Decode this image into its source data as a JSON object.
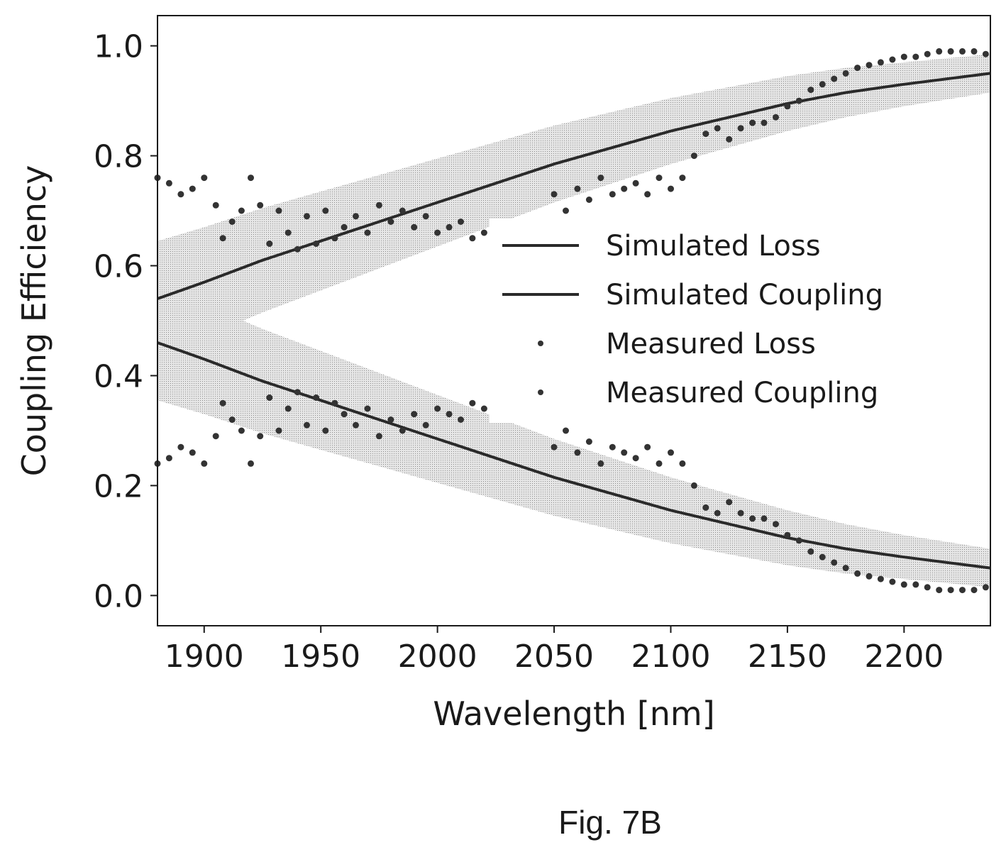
{
  "caption": "Fig. 7B",
  "chart_data": {
    "type": "line",
    "xlabel": "Wavelength [nm]",
    "ylabel": "Coupling Efficiency",
    "xlim": [
      1880,
      2237
    ],
    "ylim": [
      -0.055,
      1.055
    ],
    "xticks": [
      1900,
      1950,
      2000,
      2050,
      2100,
      2150,
      2200
    ],
    "xtick_labels": [
      "1900",
      "1950",
      "2000",
      "2050",
      "2100",
      "2150",
      "2200"
    ],
    "yticks": [
      0.0,
      0.2,
      0.4,
      0.6,
      0.8,
      1.0
    ],
    "ytick_labels": [
      "0.0",
      "0.2",
      "0.4",
      "0.6",
      "0.8",
      "1.0"
    ],
    "grid": false,
    "legend_position": "right",
    "colors": {
      "line": "#2a2a2a",
      "band": "#bdbdbd",
      "points": "#333333"
    },
    "series": [
      {
        "name": "Simulated Loss",
        "kind": "line",
        "x": [
          1880,
          1900,
          1925,
          1950,
          1975,
          2000,
          2025,
          2050,
          2075,
          2100,
          2125,
          2150,
          2175,
          2200,
          2237
        ],
        "y": [
          0.46,
          0.43,
          0.39,
          0.355,
          0.32,
          0.285,
          0.25,
          0.215,
          0.185,
          0.155,
          0.13,
          0.105,
          0.085,
          0.07,
          0.05
        ],
        "band": [
          0.105,
          0.1,
          0.095,
          0.09,
          0.085,
          0.08,
          0.075,
          0.07,
          0.065,
          0.06,
          0.055,
          0.05,
          0.045,
          0.04,
          0.035
        ]
      },
      {
        "name": "Simulated Coupling",
        "kind": "line",
        "x": [
          1880,
          1900,
          1925,
          1950,
          1975,
          2000,
          2025,
          2050,
          2075,
          2100,
          2125,
          2150,
          2175,
          2200,
          2237
        ],
        "y": [
          0.54,
          0.57,
          0.61,
          0.645,
          0.68,
          0.715,
          0.75,
          0.785,
          0.815,
          0.845,
          0.87,
          0.895,
          0.915,
          0.93,
          0.95
        ],
        "band": [
          0.105,
          0.1,
          0.095,
          0.09,
          0.085,
          0.08,
          0.075,
          0.07,
          0.065,
          0.06,
          0.055,
          0.05,
          0.045,
          0.04,
          0.035
        ]
      },
      {
        "name": "Measured Loss",
        "kind": "scatter",
        "x": [
          1880,
          1885,
          1890,
          1895,
          1900,
          1905,
          1908,
          1912,
          1916,
          1920,
          1924,
          1928,
          1932,
          1936,
          1940,
          1944,
          1948,
          1952,
          1956,
          1960,
          1965,
          1970,
          1975,
          1980,
          1985,
          1990,
          1995,
          2000,
          2005,
          2010,
          2015,
          2020,
          2045,
          2050,
          2055,
          2060,
          2065,
          2070,
          2075,
          2080,
          2085,
          2090,
          2095,
          2100,
          2105,
          2110,
          2115,
          2120,
          2125,
          2130,
          2135,
          2140,
          2145,
          2150,
          2155,
          2160,
          2165,
          2170,
          2175,
          2180,
          2185,
          2190,
          2195,
          2200,
          2205,
          2210,
          2215,
          2220,
          2225,
          2230,
          2235
        ],
        "y": [
          0.24,
          0.25,
          0.27,
          0.26,
          0.24,
          0.29,
          0.35,
          0.32,
          0.3,
          0.24,
          0.29,
          0.36,
          0.3,
          0.34,
          0.37,
          0.31,
          0.36,
          0.3,
          0.35,
          0.33,
          0.31,
          0.34,
          0.29,
          0.32,
          0.3,
          0.33,
          0.31,
          0.34,
          0.33,
          0.32,
          0.35,
          0.34,
          0.33,
          0.27,
          0.3,
          0.26,
          0.28,
          0.24,
          0.27,
          0.26,
          0.25,
          0.27,
          0.24,
          0.26,
          0.24,
          0.2,
          0.16,
          0.15,
          0.17,
          0.15,
          0.14,
          0.14,
          0.13,
          0.11,
          0.1,
          0.08,
          0.07,
          0.06,
          0.05,
          0.04,
          0.035,
          0.03,
          0.025,
          0.02,
          0.02,
          0.015,
          0.01,
          0.01,
          0.01,
          0.01,
          0.015
        ]
      },
      {
        "name": "Measured Coupling",
        "kind": "scatter",
        "x": [
          1880,
          1885,
          1890,
          1895,
          1900,
          1905,
          1908,
          1912,
          1916,
          1920,
          1924,
          1928,
          1932,
          1936,
          1940,
          1944,
          1948,
          1952,
          1956,
          1960,
          1965,
          1970,
          1975,
          1980,
          1985,
          1990,
          1995,
          2000,
          2005,
          2010,
          2015,
          2020,
          2045,
          2050,
          2055,
          2060,
          2065,
          2070,
          2075,
          2080,
          2085,
          2090,
          2095,
          2100,
          2105,
          2110,
          2115,
          2120,
          2125,
          2130,
          2135,
          2140,
          2145,
          2150,
          2155,
          2160,
          2165,
          2170,
          2175,
          2180,
          2185,
          2190,
          2195,
          2200,
          2205,
          2210,
          2215,
          2220,
          2225,
          2230,
          2235
        ],
        "y": [
          0.76,
          0.75,
          0.73,
          0.74,
          0.76,
          0.71,
          0.65,
          0.68,
          0.7,
          0.76,
          0.71,
          0.64,
          0.7,
          0.66,
          0.63,
          0.69,
          0.64,
          0.7,
          0.65,
          0.67,
          0.69,
          0.66,
          0.71,
          0.68,
          0.7,
          0.67,
          0.69,
          0.66,
          0.67,
          0.68,
          0.65,
          0.66,
          0.67,
          0.73,
          0.7,
          0.74,
          0.72,
          0.76,
          0.73,
          0.74,
          0.75,
          0.73,
          0.76,
          0.74,
          0.76,
          0.8,
          0.84,
          0.85,
          0.83,
          0.85,
          0.86,
          0.86,
          0.87,
          0.89,
          0.9,
          0.92,
          0.93,
          0.94,
          0.95,
          0.96,
          0.965,
          0.97,
          0.975,
          0.98,
          0.98,
          0.985,
          0.99,
          0.99,
          0.99,
          0.99,
          0.985
        ]
      }
    ]
  }
}
